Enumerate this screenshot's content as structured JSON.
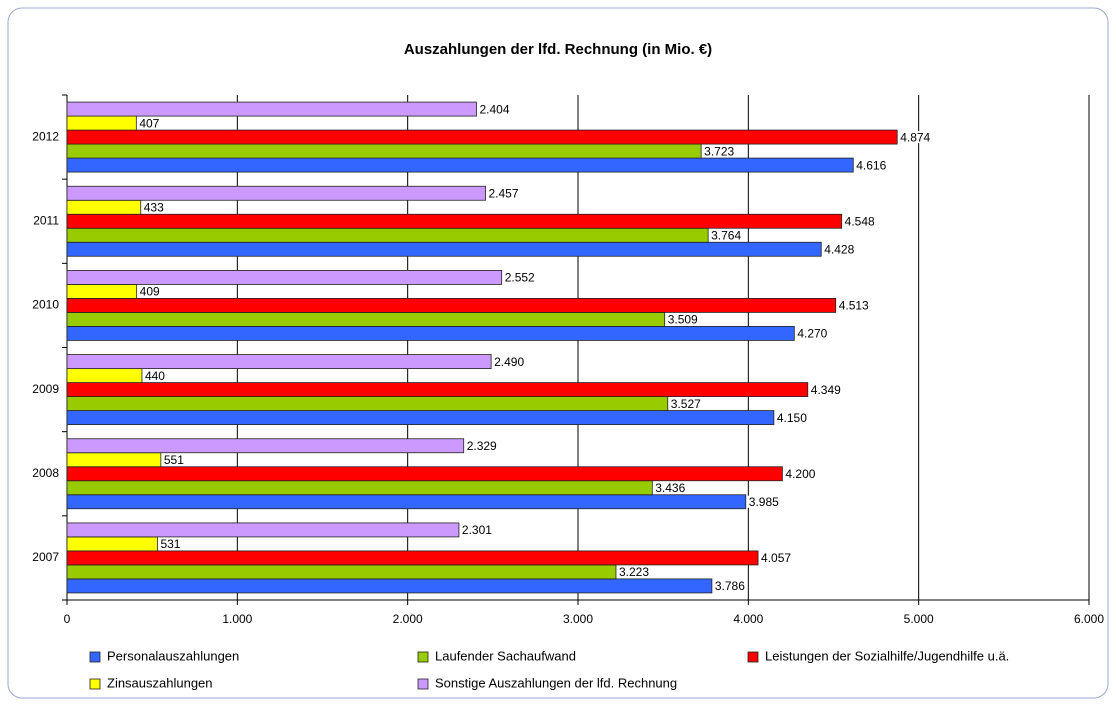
{
  "chart_data": {
    "type": "hbar",
    "title": "Auszahlungen der lfd. Rechnung (in Mio. €)",
    "categories": [
      "2007",
      "2008",
      "2009",
      "2010",
      "2011",
      "2012"
    ],
    "series": [
      {
        "name": "Personalauszahlungen",
        "color": "#3366ff",
        "values": [
          3786,
          3985,
          4150,
          4270,
          4428,
          4616
        ],
        "value_labels": [
          "3.786",
          "3.985",
          "4.150",
          "4.270",
          "4.428",
          "4.616"
        ]
      },
      {
        "name": "Laufender Sachaufwand",
        "color": "#99cc00",
        "values": [
          3223,
          3436,
          3527,
          3509,
          3764,
          3723
        ],
        "value_labels": [
          "3.223",
          "3.436",
          "3.527",
          "3.509",
          "3.764",
          "3.723"
        ]
      },
      {
        "name": "Leistungen der Sozialhilfe/Jugendhilfe u.ä.",
        "color": "#ff0000",
        "values": [
          4057,
          4200,
          4349,
          4513,
          4548,
          4874
        ],
        "value_labels": [
          "4.057",
          "4.200",
          "4.349",
          "4.513",
          "4.548",
          "4.874"
        ]
      },
      {
        "name": "Zinsauszahlungen",
        "color": "#ffff00",
        "values": [
          531,
          551,
          440,
          409,
          433,
          407
        ],
        "value_labels": [
          "531",
          "551",
          "440",
          "409",
          "433",
          "407"
        ]
      },
      {
        "name": "Sonstige Auszahlungen der lfd. Rechnung",
        "color": "#cc99ff",
        "values": [
          2301,
          2329,
          2490,
          2552,
          2457,
          2404
        ],
        "value_labels": [
          "2.301",
          "2.329",
          "2.490",
          "2.552",
          "2.457",
          "2.404"
        ]
      }
    ],
    "xlim": [
      0,
      6000
    ],
    "xticks": [
      0,
      {
        "value": 1000,
        "label": "1.000"
      },
      {
        "value": 2000,
        "label": "2.000"
      },
      {
        "value": 3000,
        "label": "3.000"
      },
      {
        "value": 4000,
        "label": "4.000"
      },
      {
        "value": 5000,
        "label": "5.000"
      },
      {
        "value": 6000,
        "label": "6.000"
      }
    ],
    "grid": true,
    "legend": "bottom"
  }
}
